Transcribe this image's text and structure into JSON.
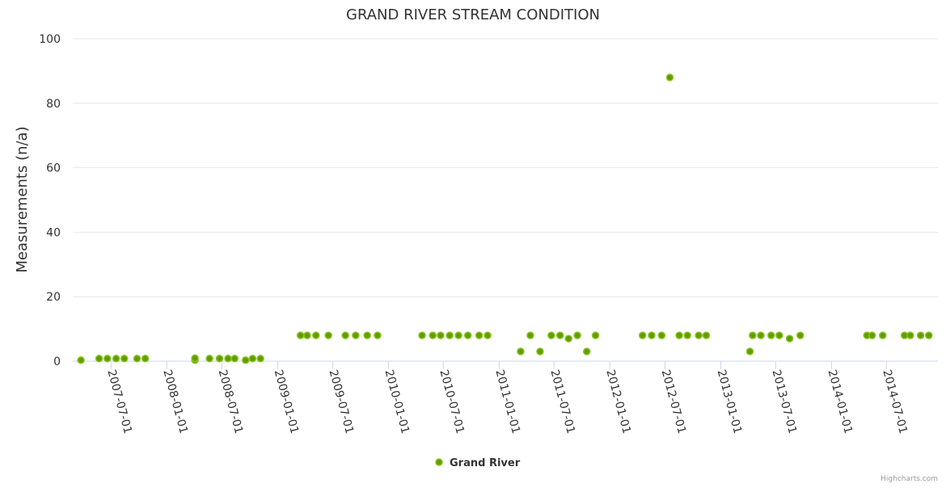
{
  "chart_data": {
    "type": "scatter",
    "title": "GRAND RIVER STREAM CONDITION",
    "xlabel": "",
    "ylabel": "Measurements (n/a)",
    "xlim": [
      "2007-02-25",
      "2014-12-18"
    ],
    "ylim": [
      0,
      100
    ],
    "yticks": [
      0,
      20,
      40,
      60,
      80,
      100
    ],
    "xticks": [
      "2007-07-01",
      "2008-01-01",
      "2008-07-01",
      "2009-01-01",
      "2009-07-01",
      "2010-01-01",
      "2010-07-01",
      "2011-01-01",
      "2011-07-01",
      "2012-01-01",
      "2012-07-01",
      "2013-01-01",
      "2013-07-01",
      "2014-01-01",
      "2014-07-01"
    ],
    "grid": true,
    "legend_position": "bottom-center",
    "series_color": "#5f9e00",
    "series": [
      {
        "name": "Grand River",
        "points": [
          [
            "2007-03-24",
            0.3
          ],
          [
            "2007-05-23",
            0.8
          ],
          [
            "2007-06-19",
            0.8
          ],
          [
            "2007-07-18",
            0.8
          ],
          [
            "2007-08-14",
            0.8
          ],
          [
            "2007-09-25",
            0.8
          ],
          [
            "2007-10-22",
            0.8
          ],
          [
            "2008-04-03",
            0.3
          ],
          [
            "2008-04-03",
            0.9
          ],
          [
            "2008-05-21",
            0.8
          ],
          [
            "2008-06-23",
            0.8
          ],
          [
            "2008-07-21",
            0.8
          ],
          [
            "2008-08-12",
            0.8
          ],
          [
            "2008-09-17",
            0.3
          ],
          [
            "2008-10-10",
            0.8
          ],
          [
            "2008-11-05",
            0.8
          ],
          [
            "2009-03-17",
            8
          ],
          [
            "2009-04-08",
            8
          ],
          [
            "2009-05-07",
            8
          ],
          [
            "2009-06-17",
            8
          ],
          [
            "2009-08-12",
            8
          ],
          [
            "2009-09-15",
            8
          ],
          [
            "2009-10-23",
            8
          ],
          [
            "2009-11-26",
            8
          ],
          [
            "2010-04-22",
            8
          ],
          [
            "2010-05-27",
            8
          ],
          [
            "2010-06-22",
            8
          ],
          [
            "2010-07-22",
            8
          ],
          [
            "2010-08-20",
            8
          ],
          [
            "2010-09-20",
            8
          ],
          [
            "2010-10-27",
            8
          ],
          [
            "2010-11-24",
            8
          ],
          [
            "2011-03-13",
            3
          ],
          [
            "2011-04-14",
            8
          ],
          [
            "2011-05-16",
            3
          ],
          [
            "2011-06-22",
            8
          ],
          [
            "2011-07-21",
            8
          ],
          [
            "2011-08-18",
            7
          ],
          [
            "2011-09-16",
            8
          ],
          [
            "2011-10-17",
            3
          ],
          [
            "2011-11-15",
            8
          ],
          [
            "2012-04-18",
            8
          ],
          [
            "2012-05-18",
            8
          ],
          [
            "2012-06-20",
            8
          ],
          [
            "2012-07-17",
            88
          ],
          [
            "2012-08-17",
            8
          ],
          [
            "2012-09-13",
            8
          ],
          [
            "2012-10-20",
            8
          ],
          [
            "2012-11-14",
            8
          ],
          [
            "2013-04-07",
            3
          ],
          [
            "2013-04-16",
            8
          ],
          [
            "2013-05-13",
            8
          ],
          [
            "2013-06-16",
            8
          ],
          [
            "2013-07-13",
            8
          ],
          [
            "2013-08-16",
            7
          ],
          [
            "2013-09-20",
            8
          ],
          [
            "2014-04-28",
            8
          ],
          [
            "2014-05-15",
            8
          ],
          [
            "2014-06-19",
            8
          ],
          [
            "2014-08-30",
            8
          ],
          [
            "2014-09-18",
            8
          ],
          [
            "2014-10-22",
            8
          ],
          [
            "2014-11-18",
            8
          ]
        ]
      }
    ]
  },
  "credits": "Highcharts.com"
}
